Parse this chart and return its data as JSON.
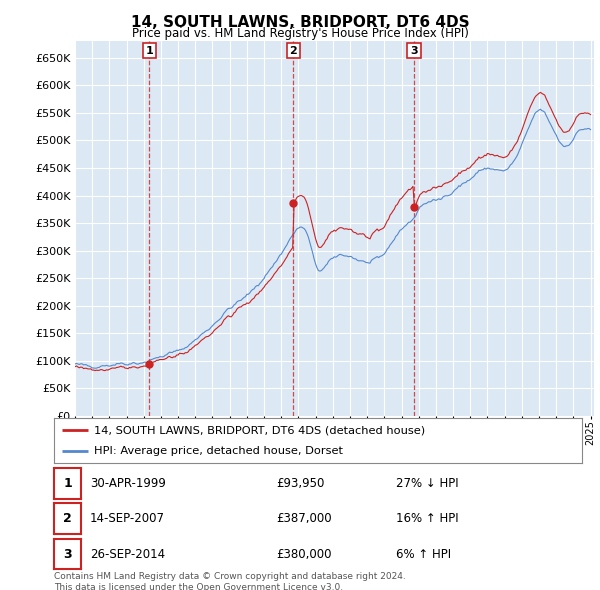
{
  "title": "14, SOUTH LAWNS, BRIDPORT, DT6 4DS",
  "subtitle": "Price paid vs. HM Land Registry's House Price Index (HPI)",
  "ylim": [
    0,
    680000
  ],
  "yticks": [
    0,
    50000,
    100000,
    150000,
    200000,
    250000,
    300000,
    350000,
    400000,
    450000,
    500000,
    550000,
    600000,
    650000
  ],
  "xlim_start": 1995.0,
  "xlim_end": 2025.2,
  "background_color": "#ffffff",
  "plot_bg_color": "#dce9f5",
  "grid_color": "#ffffff",
  "red_line_color": "#cc2222",
  "blue_line_color": "#5588cc",
  "sale_markers": [
    {
      "label": "1",
      "year": 1999.33,
      "price": 93950
    },
    {
      "label": "2",
      "year": 2007.71,
      "price": 387000
    },
    {
      "label": "3",
      "year": 2014.73,
      "price": 380000
    }
  ],
  "legend_items": [
    {
      "label": "14, SOUTH LAWNS, BRIDPORT, DT6 4DS (detached house)",
      "color": "#cc2222"
    },
    {
      "label": "HPI: Average price, detached house, Dorset",
      "color": "#5588cc"
    }
  ],
  "table_rows": [
    {
      "num": "1",
      "date": "30-APR-1999",
      "price": "£93,950",
      "hpi": "27% ↓ HPI"
    },
    {
      "num": "2",
      "date": "14-SEP-2007",
      "price": "£387,000",
      "hpi": "16% ↑ HPI"
    },
    {
      "num": "3",
      "date": "26-SEP-2014",
      "price": "£380,000",
      "hpi": "6% ↑ HPI"
    }
  ],
  "footnote": "Contains HM Land Registry data © Crown copyright and database right 2024.\nThis data is licensed under the Open Government Licence v3.0."
}
